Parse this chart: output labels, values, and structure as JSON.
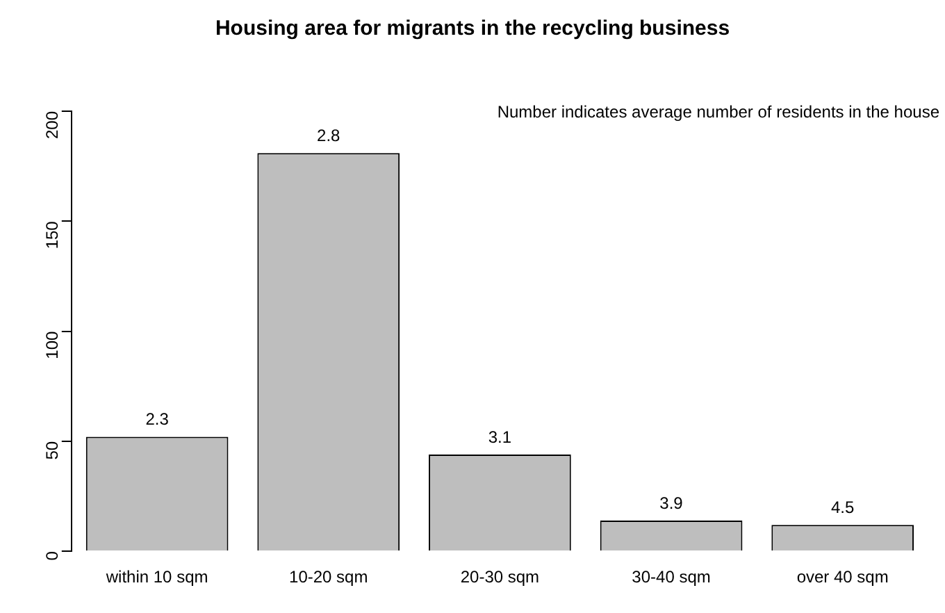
{
  "chart_data": {
    "type": "bar",
    "title": "Housing area for migrants in the recycling business",
    "categories": [
      "within 10 sqm",
      "10-20 sqm",
      "20-30 sqm",
      "30-40 sqm",
      "over 40 sqm"
    ],
    "values": [
      52,
      181,
      44,
      14,
      12
    ],
    "color": "#bebebe",
    "ylim": [
      0,
      200
    ],
    "yticks": [
      0,
      50,
      100,
      150,
      200
    ],
    "grid": false,
    "legend": false,
    "annotations": [
      "Number indicates average number of residents in the house",
      {
        "text": "2.3",
        "x": "within 10 sqm",
        "y": 52
      },
      {
        "text": "2.8",
        "x": "10-20 sqm",
        "y": 181
      },
      {
        "text": "3.1",
        "x": "20-30 sqm",
        "y": 44
      },
      {
        "text": "3.9",
        "x": "30-40 sqm",
        "y": 14
      },
      {
        "text": "4.5",
        "x": "over 40 sqm",
        "y": 12
      }
    ]
  }
}
